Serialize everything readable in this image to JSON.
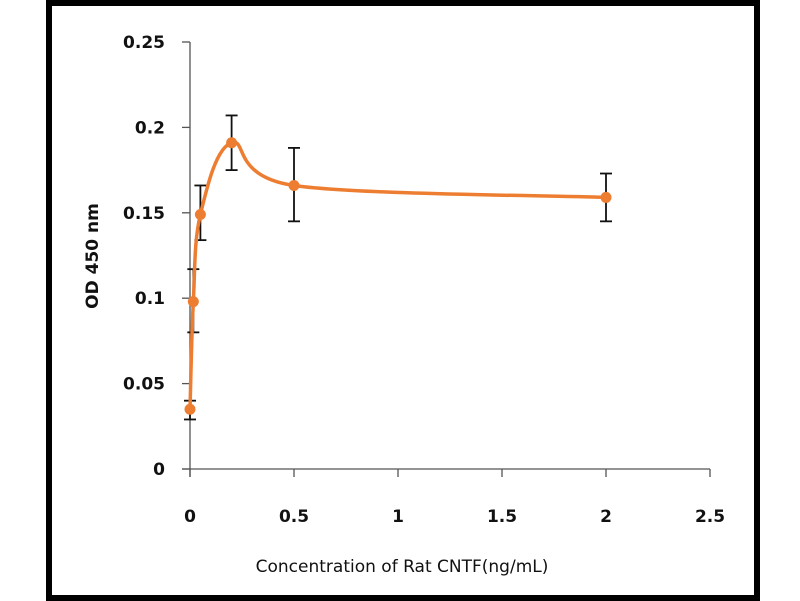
{
  "chart_data": {
    "type": "line",
    "title": "",
    "xlabel": "Concentration of Rat CNTF(ng/mL)",
    "ylabel": "OD 450 nm",
    "xlim": [
      0,
      2.5
    ],
    "ylim": [
      0,
      0.25
    ],
    "xticks": [
      "0",
      "0.5",
      "1",
      "1.5",
      "2",
      "2.5"
    ],
    "yticks": [
      "0",
      "0.05",
      "0.1",
      "0.15",
      "0.2",
      "0.25"
    ],
    "grid": false,
    "legend": "none",
    "series": [
      {
        "name": "Rat CNTF",
        "color": "#ed7d31",
        "smooth": true,
        "x": [
          0,
          0.016,
          0.05,
          0.2,
          0.5,
          2
        ],
        "values": [
          0.035,
          0.098,
          0.149,
          0.191,
          0.166,
          0.159
        ],
        "err_low": [
          0.029,
          0.08,
          0.134,
          0.175,
          0.145,
          0.145
        ],
        "err_high": [
          0.04,
          0.117,
          0.166,
          0.207,
          0.188,
          0.173
        ]
      }
    ]
  }
}
